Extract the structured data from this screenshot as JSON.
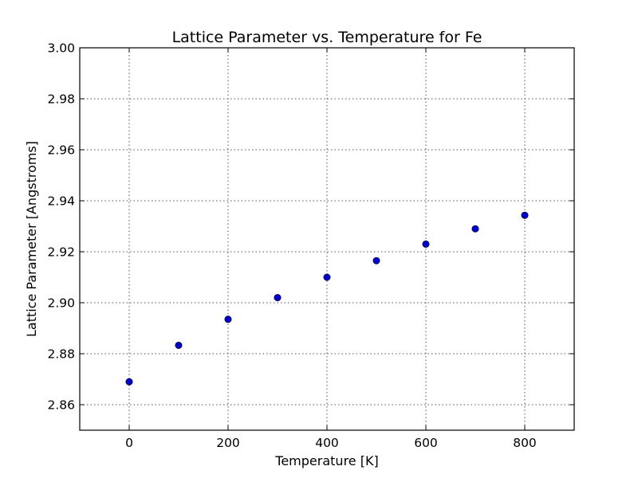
{
  "chart_data": {
    "type": "scatter",
    "title": "Lattice Parameter vs. Temperature for Fe",
    "xlabel": "Temperature [K]",
    "ylabel": "Lattice Parameter [Angstroms]",
    "xlim": [
      -100,
      900
    ],
    "ylim": [
      2.85,
      3.0
    ],
    "xticks": [
      0,
      200,
      400,
      600,
      800
    ],
    "xtick_labels": [
      "0",
      "200",
      "400",
      "600",
      "800"
    ],
    "yticks": [
      2.86,
      2.88,
      2.9,
      2.92,
      2.94,
      2.96,
      2.98,
      3.0
    ],
    "ytick_labels": [
      "2.86",
      "2.88",
      "2.90",
      "2.92",
      "2.94",
      "2.96",
      "2.98",
      "3.00"
    ],
    "grid": true,
    "marker_color": "#0000cc",
    "series": [
      {
        "x": [
          0,
          100,
          200,
          300,
          400,
          500,
          600,
          700,
          800
        ],
        "y": [
          2.869,
          2.8833,
          2.8935,
          2.902,
          2.91,
          2.9165,
          2.923,
          2.929,
          2.9343
        ]
      }
    ]
  }
}
